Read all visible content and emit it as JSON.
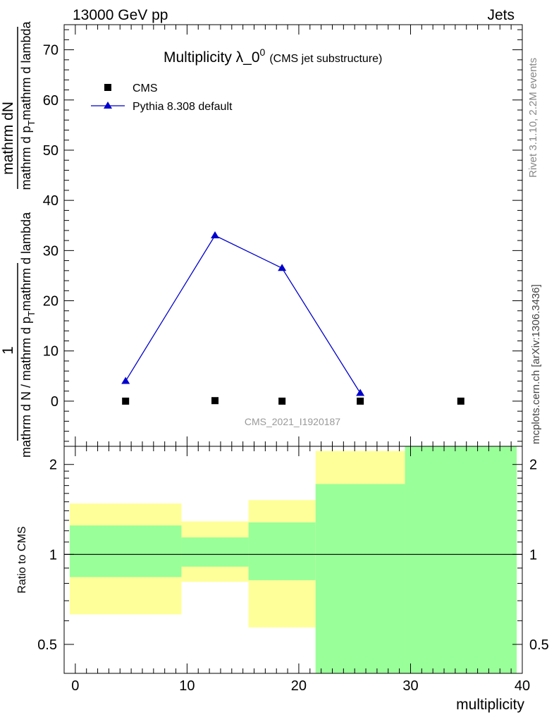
{
  "header": {
    "left": "13000 GeV pp",
    "right": "Jets"
  },
  "side_labels": {
    "top": "Rivet 3.1.10,  2.2M events",
    "bottom": "mcplots.cern.ch [arXiv:1306.3436]"
  },
  "watermark": "CMS_2021_I1920187",
  "colors": {
    "mc": "#0000cc",
    "data": "#000000",
    "band_inner": "#99ff99",
    "band_outer": "#ffff99"
  },
  "chart_data": [
    {
      "type": "line",
      "title_main": "Multiplicity λ_0",
      "title_sup": "0",
      "title_sub": "(CMS jet substructure)",
      "ylabel_numerator": "1",
      "ylabel_denominator": "mathrm d N / mathrm d p",
      "ylabel_denominator_sub": "T",
      "ylabel_denominator_tail": "mathrm d lambda",
      "ylabel_numerator_full": "mathrm d",
      "ylabel_numerator_tail": "N",
      "ylabel_right_main": "mathrm d p",
      "ylabel_right_sub": "T",
      "ylabel_right_tail": "mathrm d lambda",
      "ylim": [
        -9,
        75
      ],
      "yticks": [
        0,
        10,
        20,
        30,
        40,
        50,
        60,
        70
      ],
      "xlim": [
        -1,
        40
      ],
      "legend_position": "top-left",
      "series": [
        {
          "name": "CMS",
          "marker": "square",
          "x": [
            4.5,
            12.5,
            18.5,
            25.5,
            34.5
          ],
          "y": [
            0.0,
            0.1,
            0.0,
            0.0,
            0.0
          ]
        },
        {
          "name": "Pythia 8.308 default",
          "marker": "triangle",
          "x": [
            4.5,
            12.5,
            18.5,
            25.5
          ],
          "y": [
            4.0,
            33.0,
            26.5,
            1.6
          ]
        }
      ]
    },
    {
      "type": "area",
      "ylabel": "Ratio to CMS",
      "xlabel": "multiplicity",
      "ylim": [
        0.4,
        2.3
      ],
      "ytick_labels": [
        "0.5",
        "1",
        "2"
      ],
      "yticks": [
        0.5,
        1,
        2
      ],
      "xticks": [
        0,
        10,
        20,
        30,
        40
      ],
      "xtick_labels": [
        "0",
        "10",
        "20",
        "30",
        "40"
      ],
      "log_y": true,
      "reference_line": 1,
      "bins": [
        {
          "x_low": -0.5,
          "x_high": 9.5,
          "inner_low": 0.84,
          "inner_high": 1.25,
          "outer_low": 0.63,
          "outer_high": 1.48
        },
        {
          "x_low": 9.5,
          "x_high": 15.5,
          "inner_low": 0.91,
          "inner_high": 1.14,
          "outer_low": 0.81,
          "outer_high": 1.29
        },
        {
          "x_low": 15.5,
          "x_high": 21.5,
          "inner_low": 0.82,
          "inner_high": 1.28,
          "outer_low": 0.57,
          "outer_high": 1.52
        },
        {
          "x_low": 21.5,
          "x_high": 29.5,
          "inner_low": 0.4,
          "inner_high": 1.72,
          "outer_low": 0.4,
          "outer_high": 2.22
        },
        {
          "x_low": 29.5,
          "x_high": 39.5,
          "inner_low": 0.4,
          "inner_high": 2.3,
          "outer_low": 0.4,
          "outer_high": 2.3
        }
      ]
    }
  ]
}
